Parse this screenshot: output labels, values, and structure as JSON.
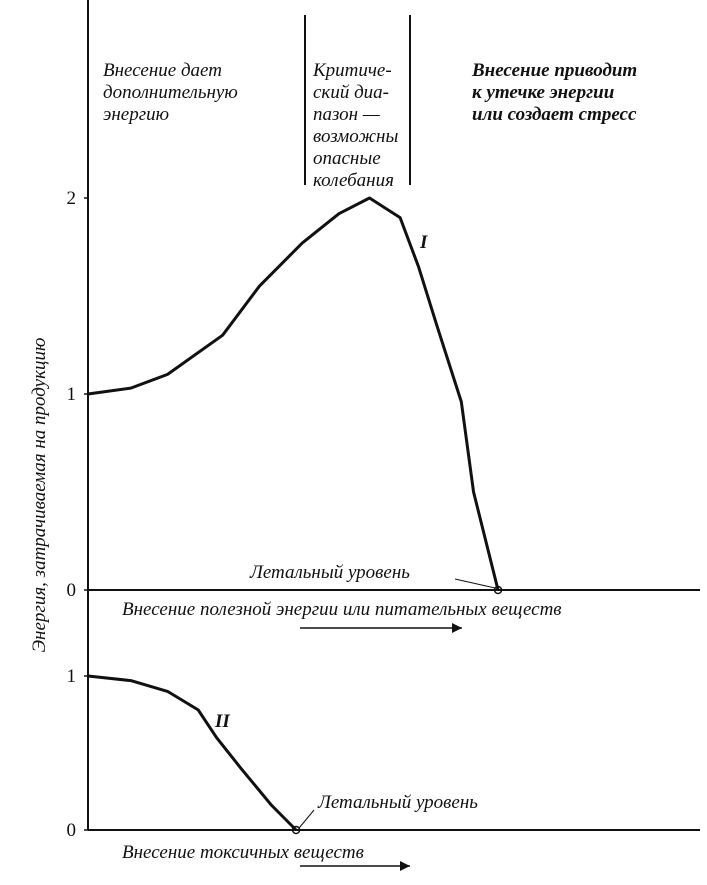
{
  "chart_data": [
    {
      "type": "line",
      "ylabel": "Энергия, затрачиваемая на продукцию",
      "xlabel": "Внесение полезной энергии или питательных веществ",
      "zones": [
        {
          "lines": [
            "Внесение дает",
            "дополнительную",
            "энергию"
          ]
        },
        {
          "lines": [
            "Критиче-",
            "ский диа-",
            "пазон —",
            "возможны",
            "опасные",
            "колебания"
          ]
        },
        {
          "lines": [
            "Внесение приводит",
            "к утечке энергии",
            "или создает стресс"
          ]
        }
      ],
      "annotation": "Летальный уровень",
      "x": [
        0,
        7,
        13,
        22,
        28,
        35,
        41,
        46,
        51,
        54,
        57,
        61,
        63,
        67
      ],
      "series": [
        {
          "name": "I",
          "color": "#111111",
          "values": [
            1.0,
            1.03,
            1.1,
            1.3,
            1.55,
            1.77,
            1.92,
            2.0,
            1.9,
            1.65,
            1.35,
            0.96,
            0.5,
            0.0
          ]
        }
      ],
      "xlim": [
        0,
        100
      ],
      "ylim": [
        0,
        3
      ],
      "yticks": [
        0,
        1,
        2
      ]
    },
    {
      "type": "line",
      "xlabel": "Внесение токсичных веществ",
      "annotation": "Летальный уровень",
      "x": [
        0,
        7,
        13,
        18,
        21,
        25,
        30,
        34
      ],
      "series": [
        {
          "name": "II",
          "color": "#111111",
          "values": [
            1.0,
            0.97,
            0.9,
            0.78,
            0.6,
            0.4,
            0.16,
            0.0
          ]
        }
      ],
      "xlim": [
        0,
        100
      ],
      "ylim": [
        0,
        1.5
      ],
      "yticks": [
        0,
        1
      ]
    }
  ]
}
